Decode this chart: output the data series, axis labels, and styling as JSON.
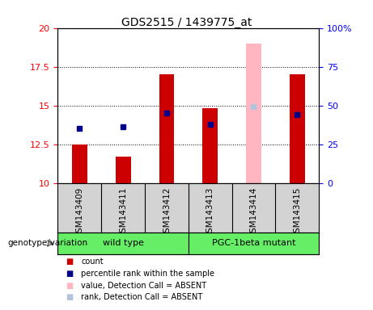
{
  "title": "GDS2515 / 1439775_at",
  "samples": [
    "GSM143409",
    "GSM143411",
    "GSM143412",
    "GSM143413",
    "GSM143414",
    "GSM143415"
  ],
  "count_values": [
    12.5,
    11.7,
    17.0,
    14.8,
    null,
    17.0
  ],
  "count_absent_values": [
    null,
    null,
    null,
    null,
    19.0,
    null
  ],
  "percentile_values": [
    13.5,
    13.6,
    14.5,
    13.8,
    null,
    14.4
  ],
  "percentile_absent_values": [
    null,
    null,
    null,
    null,
    14.9,
    null
  ],
  "ylim_left": [
    10,
    20
  ],
  "ylim_right": [
    0,
    100
  ],
  "yticks_left": [
    10,
    12.5,
    15,
    17.5,
    20
  ],
  "yticks_right": [
    0,
    25,
    50,
    75,
    100
  ],
  "ytick_labels_left": [
    "10",
    "12.5",
    "15",
    "17.5",
    "20"
  ],
  "ytick_labels_right": [
    "0",
    "25",
    "50",
    "75",
    "100%"
  ],
  "bar_color": "#cc0000",
  "bar_absent_color": "#ffb6c1",
  "dot_color": "#00008b",
  "dot_absent_color": "#b0c4de",
  "bar_width": 0.35,
  "dot_size": 20,
  "background_color": "#ffffff",
  "plot_bg_color": "#ffffff",
  "label_area_color": "#d3d3d3",
  "green_color": "#66ee66",
  "group_label_text": "genotype/variation",
  "wt_label": "wild type",
  "pgc_label": "PGC-1beta mutant",
  "legend_items": [
    [
      "count",
      "#cc0000"
    ],
    [
      "percentile rank within the sample",
      "#00008b"
    ],
    [
      "value, Detection Call = ABSENT",
      "#ffb6c1"
    ],
    [
      "rank, Detection Call = ABSENT",
      "#b0c4de"
    ]
  ]
}
